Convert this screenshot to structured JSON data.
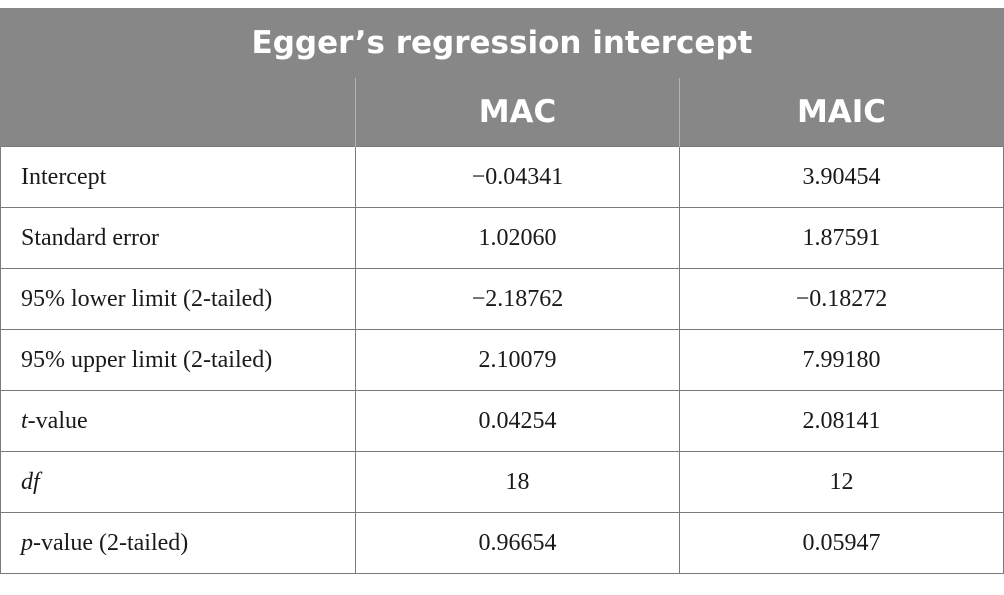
{
  "table": {
    "title": "Egger’s regression intercept",
    "columns": [
      "",
      "MAC",
      "MAIC"
    ],
    "rows": [
      {
        "label_italic": "",
        "label_rest": "Intercept",
        "mac": "−0.04341",
        "maic": "3.90454"
      },
      {
        "label_italic": "",
        "label_rest": "Standard error",
        "mac": "1.02060",
        "maic": "1.87591"
      },
      {
        "label_italic": "",
        "label_rest": "95% lower limit (2-tailed)",
        "mac": "−2.18762",
        "maic": "−0.18272"
      },
      {
        "label_italic": "",
        "label_rest": "95% upper limit (2-tailed)",
        "mac": "2.10079",
        "maic": "7.99180"
      },
      {
        "label_italic": "t",
        "label_rest": "-value",
        "mac": "0.04254",
        "maic": "2.08141"
      },
      {
        "label_italic": "df",
        "label_rest": "",
        "mac": "18",
        "maic": "12"
      },
      {
        "label_italic": "p",
        "label_rest": "-value (2-tailed)",
        "mac": "0.96654",
        "maic": "0.05947"
      }
    ]
  }
}
